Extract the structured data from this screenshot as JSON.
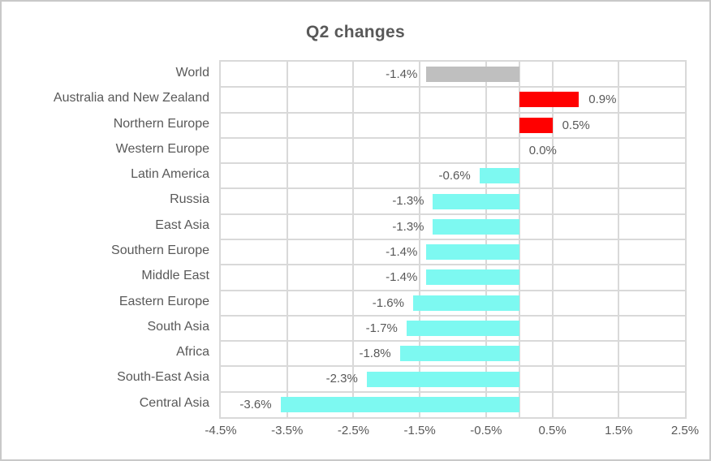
{
  "chart_data": {
    "type": "bar",
    "orientation": "horizontal",
    "title": "Q2 changes",
    "categories": [
      "World",
      "Australia and New Zealand",
      "Northern Europe",
      "Western Europe",
      "Latin America",
      "Russia",
      "East Asia",
      "Southern Europe",
      "Middle East",
      "Eastern Europe",
      "South Asia",
      "Africa",
      "South-East Asia",
      "Central Asia"
    ],
    "values": [
      -1.4,
      0.9,
      0.5,
      0.0,
      -0.6,
      -1.3,
      -1.3,
      -1.4,
      -1.4,
      -1.6,
      -1.7,
      -1.8,
      -2.3,
      -3.6
    ],
    "data_labels": [
      "-1.4%",
      "0.9%",
      "0.5%",
      "0.0%",
      "-0.6%",
      "-1.3%",
      "-1.3%",
      "-1.4%",
      "-1.4%",
      "-1.6%",
      "-1.7%",
      "-1.8%",
      "-2.3%",
      "-3.6%"
    ],
    "bar_colors": [
      "#BFBFBF",
      "#FF0000",
      "#FF0000",
      "#7DF9F1",
      "#7DF9F1",
      "#7DF9F1",
      "#7DF9F1",
      "#7DF9F1",
      "#7DF9F1",
      "#7DF9F1",
      "#7DF9F1",
      "#7DF9F1",
      "#7DF9F1",
      "#7DF9F1"
    ],
    "xlim": [
      -4.5,
      2.5
    ],
    "x_tick_labels": [
      "-4.5%",
      "-3.5%",
      "-2.5%",
      "-1.5%",
      "-0.5%",
      "0.5%",
      "1.5%",
      "2.5%"
    ],
    "xlabel": "",
    "ylabel": "",
    "grid": true,
    "legend": false
  },
  "colors": {
    "bar_negative": "#7DF9F1",
    "bar_positive": "#FF0000",
    "bar_world": "#BFBFBF",
    "gridline": "#D9D9D9",
    "text": "#595959",
    "frame_border": "#C9C9C9",
    "background": "#FFFFFF"
  }
}
